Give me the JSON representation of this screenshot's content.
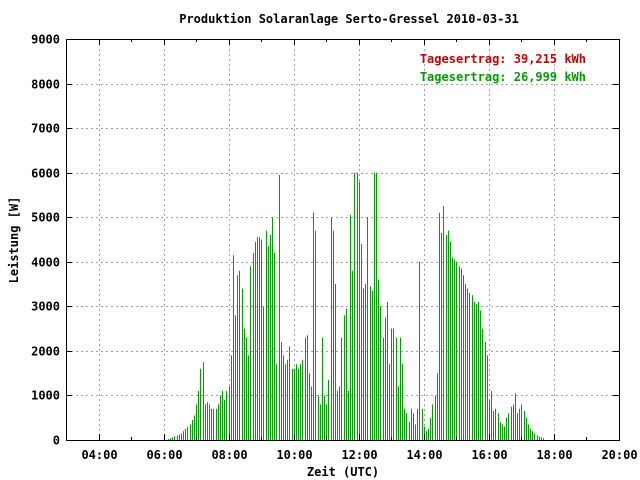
{
  "chart_data": {
    "type": "bar",
    "title": "Produktion Solaranlage Serto-Gressel 2010-03-31",
    "xlabel": "Zeit (UTC)",
    "ylabel": "Leistung [W]",
    "xlim": [
      "03:00",
      "20:00"
    ],
    "ylim": [
      0,
      9000
    ],
    "grid": true,
    "x_tick_labels": [
      "04:00",
      "06:00",
      "08:00",
      "10:00",
      "12:00",
      "14:00",
      "16:00",
      "18:00",
      "20:00"
    ],
    "y_tick_labels": [
      "0",
      "1000",
      "2000",
      "3000",
      "4000",
      "5000",
      "6000",
      "7000",
      "8000",
      "9000"
    ],
    "legend_placement": "top-right",
    "annotations": [
      {
        "text": "Tagesertrag: 39,215 kWh",
        "color": "#cc0000"
      },
      {
        "text": "Tagesertrag: 26,999 kWh",
        "color": "#00a000"
      }
    ],
    "series": [
      {
        "color": "#00a000",
        "points": [
          [
            "06:08",
            20
          ],
          [
            "06:12",
            40
          ],
          [
            "06:16",
            60
          ],
          [
            "06:20",
            80
          ],
          [
            "06:24",
            100
          ],
          [
            "06:28",
            120
          ],
          [
            "06:32",
            150
          ],
          [
            "06:36",
            200
          ],
          [
            "06:40",
            250
          ],
          [
            "06:44",
            300
          ],
          [
            "06:48",
            350
          ],
          [
            "06:52",
            450
          ],
          [
            "06:56",
            550
          ],
          [
            "07:00",
            800
          ],
          [
            "07:04",
            1100
          ],
          [
            "07:08",
            1600
          ],
          [
            "07:12",
            1750
          ],
          [
            "07:16",
            800
          ],
          [
            "07:20",
            850
          ],
          [
            "07:24",
            800
          ],
          [
            "07:28",
            700
          ],
          [
            "07:32",
            700
          ],
          [
            "07:36",
            700
          ],
          [
            "07:40",
            800
          ],
          [
            "07:44",
            1000
          ],
          [
            "07:48",
            1100
          ],
          [
            "07:52",
            900
          ],
          [
            "07:56",
            1100
          ],
          [
            "08:00",
            1200
          ],
          [
            "08:04",
            1900
          ],
          [
            "08:08",
            4150
          ],
          [
            "08:12",
            2800
          ],
          [
            "08:16",
            3700
          ],
          [
            "08:20",
            3800
          ],
          [
            "08:24",
            3400
          ],
          [
            "08:28",
            2500
          ],
          [
            "08:32",
            2300
          ],
          [
            "08:36",
            1900
          ],
          [
            "08:40",
            3900
          ],
          [
            "08:44",
            4200
          ],
          [
            "08:48",
            4450
          ],
          [
            "08:52",
            4550
          ],
          [
            "08:56",
            4550
          ],
          [
            "09:00",
            4500
          ],
          [
            "09:04",
            3000
          ],
          [
            "09:08",
            4700
          ],
          [
            "09:12",
            4350
          ],
          [
            "09:16",
            4600
          ],
          [
            "09:20",
            5000
          ],
          [
            "09:24",
            4200
          ],
          [
            "09:28",
            1700
          ],
          [
            "09:32",
            5950
          ],
          [
            "09:36",
            2200
          ],
          [
            "09:40",
            1900
          ],
          [
            "09:44",
            1700
          ],
          [
            "09:48",
            1800
          ],
          [
            "09:52",
            2100
          ],
          [
            "09:56",
            1600
          ],
          [
            "10:00",
            1600
          ],
          [
            "10:04",
            1700
          ],
          [
            "10:08",
            1600
          ],
          [
            "10:12",
            1700
          ],
          [
            "10:16",
            1800
          ],
          [
            "10:20",
            2300
          ],
          [
            "10:24",
            2350
          ],
          [
            "10:28",
            1500
          ],
          [
            "10:32",
            1200
          ],
          [
            "10:36",
            5100
          ],
          [
            "10:40",
            4700
          ],
          [
            "10:44",
            1000
          ],
          [
            "10:48",
            800
          ],
          [
            "10:52",
            2300
          ],
          [
            "10:56",
            1000
          ],
          [
            "11:00",
            800
          ],
          [
            "11:04",
            1350
          ],
          [
            "11:08",
            5000
          ],
          [
            "11:12",
            4700
          ],
          [
            "11:16",
            3500
          ],
          [
            "11:20",
            1100
          ],
          [
            "11:24",
            1200
          ],
          [
            "11:28",
            2300
          ],
          [
            "11:32",
            2800
          ],
          [
            "11:36",
            2950
          ],
          [
            "11:40",
            1100
          ],
          [
            "11:44",
            5050
          ],
          [
            "11:48",
            3800
          ],
          [
            "11:52",
            6000
          ],
          [
            "11:56",
            6000
          ],
          [
            "12:00",
            5800
          ],
          [
            "12:04",
            4400
          ],
          [
            "12:08",
            3400
          ],
          [
            "12:12",
            3500
          ],
          [
            "12:16",
            5000
          ],
          [
            "12:20",
            3450
          ],
          [
            "12:24",
            3350
          ],
          [
            "12:28",
            6000
          ],
          [
            "12:32",
            6000
          ],
          [
            "12:36",
            3600
          ],
          [
            "12:40",
            3000
          ],
          [
            "12:44",
            2300
          ],
          [
            "12:48",
            2750
          ],
          [
            "12:52",
            3100
          ],
          [
            "12:56",
            1700
          ],
          [
            "13:00",
            2500
          ],
          [
            "13:04",
            2500
          ],
          [
            "13:08",
            2300
          ],
          [
            "13:12",
            1200
          ],
          [
            "13:16",
            2300
          ],
          [
            "13:20",
            1700
          ],
          [
            "13:24",
            700
          ],
          [
            "13:28",
            600
          ],
          [
            "13:32",
            400
          ],
          [
            "13:36",
            700
          ],
          [
            "13:40",
            600
          ],
          [
            "13:44",
            350
          ],
          [
            "13:48",
            700
          ],
          [
            "13:52",
            4000
          ],
          [
            "13:56",
            700
          ],
          [
            "14:00",
            300
          ],
          [
            "14:04",
            200
          ],
          [
            "14:08",
            250
          ],
          [
            "14:12",
            500
          ],
          [
            "14:16",
            800
          ],
          [
            "14:20",
            1000
          ],
          [
            "14:24",
            1500
          ],
          [
            "14:28",
            5100
          ],
          [
            "14:32",
            4650
          ],
          [
            "14:36",
            5250
          ],
          [
            "14:40",
            4600
          ],
          [
            "14:44",
            4700
          ],
          [
            "14:48",
            4450
          ],
          [
            "14:52",
            4100
          ],
          [
            "14:56",
            4050
          ],
          [
            "15:00",
            4000
          ],
          [
            "15:04",
            3900
          ],
          [
            "15:08",
            3850
          ],
          [
            "15:12",
            3700
          ],
          [
            "15:16",
            3500
          ],
          [
            "15:20",
            3400
          ],
          [
            "15:24",
            3300
          ],
          [
            "15:28",
            3250
          ],
          [
            "15:32",
            3100
          ],
          [
            "15:36",
            3050
          ],
          [
            "15:40",
            3100
          ],
          [
            "15:44",
            2900
          ],
          [
            "15:48",
            2500
          ],
          [
            "15:52",
            2200
          ],
          [
            "15:56",
            1900
          ],
          [
            "16:00",
            900
          ],
          [
            "16:04",
            1100
          ],
          [
            "16:08",
            650
          ],
          [
            "16:12",
            700
          ],
          [
            "16:16",
            600
          ],
          [
            "16:20",
            400
          ],
          [
            "16:24",
            350
          ],
          [
            "16:28",
            300
          ],
          [
            "16:32",
            500
          ],
          [
            "16:36",
            600
          ],
          [
            "16:40",
            750
          ],
          [
            "16:44",
            800
          ],
          [
            "16:48",
            1050
          ],
          [
            "16:52",
            600
          ],
          [
            "16:56",
            700
          ],
          [
            "17:00",
            800
          ],
          [
            "17:04",
            650
          ],
          [
            "17:08",
            500
          ],
          [
            "17:12",
            350
          ],
          [
            "17:16",
            250
          ],
          [
            "17:20",
            200
          ],
          [
            "17:24",
            150
          ],
          [
            "17:28",
            100
          ],
          [
            "17:32",
            80
          ],
          [
            "17:36",
            60
          ],
          [
            "17:40",
            40
          ]
        ]
      }
    ]
  }
}
